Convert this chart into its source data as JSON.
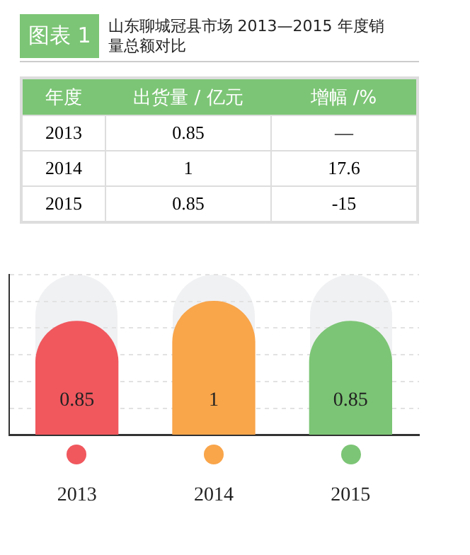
{
  "chart_data": [
    {
      "type": "other",
      "title": "山东聊城冠县市场 2013—2015 年度销量总额对比",
      "annotations": [
        "图表 1",
        "—"
      ],
      "xlabel": "年度",
      "data_labels": true,
      "categories": [
        "2013",
        "2014",
        "2015"
      ],
      "series": [
        {
          "name": "出货量 / 亿元",
          "values": [
            0.85,
            1,
            0.85
          ]
        },
        {
          "name": "增幅 /%",
          "values": [
            null,
            17.6,
            -15
          ]
        }
      ]
    },
    {
      "type": "bar",
      "categories": [
        "2013",
        "2014",
        "2015"
      ],
      "values": [
        0.85,
        1,
        0.85
      ],
      "colors": [
        "#f0585e",
        "#f9a54a",
        "#7cc576"
      ],
      "data_labels": true,
      "ylim": [
        0,
        1.2
      ],
      "yticks": [
        {
          "value": 0,
          "label": null
        },
        {
          "value": 0.2,
          "label": null
        },
        {
          "value": 0.4,
          "label": null
        },
        {
          "value": 0.6,
          "label": null
        },
        {
          "value": 0.8,
          "label": null
        },
        {
          "value": 1,
          "label": null
        },
        {
          "value": 1.2,
          "label": null
        }
      ],
      "grid": "y",
      "tick_labels": "x"
    }
  ]
}
